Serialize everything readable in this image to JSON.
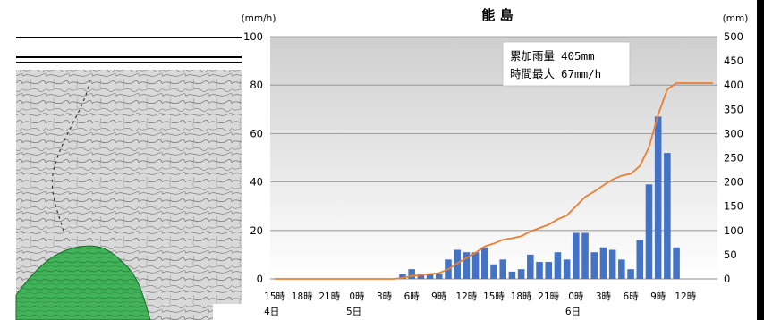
{
  "chart_data": {
    "type": "bar+line",
    "title": "能 島",
    "y_left_unit": "(mm/h)",
    "y_right_unit": "(mm)",
    "y_left_range": [
      0,
      100
    ],
    "y_left_ticks": [
      0,
      20,
      40,
      60,
      80,
      100
    ],
    "y_right_range": [
      0,
      500
    ],
    "y_right_ticks": [
      0,
      50,
      100,
      150,
      200,
      250,
      300,
      350,
      400,
      450,
      500
    ],
    "x_tick_labels": [
      "15時",
      "18時",
      "21時",
      "0時",
      "3時",
      "6時",
      "9時",
      "12時",
      "15時",
      "18時",
      "21時",
      "0時",
      "3時",
      "6時",
      "9時",
      "12時"
    ],
    "x_date_labels": [
      {
        "label": "4日",
        "tick_index": 0
      },
      {
        "label": "5日",
        "tick_index": 3
      },
      {
        "label": "6日",
        "tick_index": 11
      }
    ],
    "hours_start": "4日15時",
    "series": [
      {
        "type": "bar",
        "values": [
          0,
          0,
          0,
          0,
          0,
          0,
          0,
          0,
          0,
          0,
          0,
          0,
          0,
          0,
          2,
          4,
          2,
          2,
          2,
          8,
          12,
          11,
          11,
          13,
          6,
          8,
          3,
          4,
          10,
          7,
          7,
          11,
          8,
          19,
          19,
          11,
          13,
          12,
          8,
          4,
          16,
          39,
          67,
          52,
          13,
          0,
          0,
          0,
          0
        ]
      },
      {
        "type": "line",
        "values": [
          0,
          0,
          0,
          0,
          0,
          0,
          0,
          0,
          0,
          0,
          0,
          0,
          0,
          0,
          2,
          6,
          8,
          10,
          12,
          20,
          32,
          43,
          54,
          67,
          73,
          81,
          84,
          88,
          98,
          105,
          112,
          123,
          131,
          150,
          169,
          180,
          193,
          205,
          213,
          217,
          233,
          272,
          339,
          391,
          404,
          404,
          404,
          404,
          404
        ]
      }
    ],
    "annotation": {
      "total_label": "累加雨量",
      "total_value": "405mm",
      "max_label": "時間最大",
      "max_value": "67mm/h"
    }
  },
  "colors": {
    "bar": "#4472c4",
    "line": "#ed7d31",
    "grid": "#8c8c8c",
    "plot_bg_top": "#cfcfcf",
    "plot_bg_bottom": "#ffffff",
    "map_contour": "#5a5a5a",
    "map_green": "#2e9a46"
  }
}
